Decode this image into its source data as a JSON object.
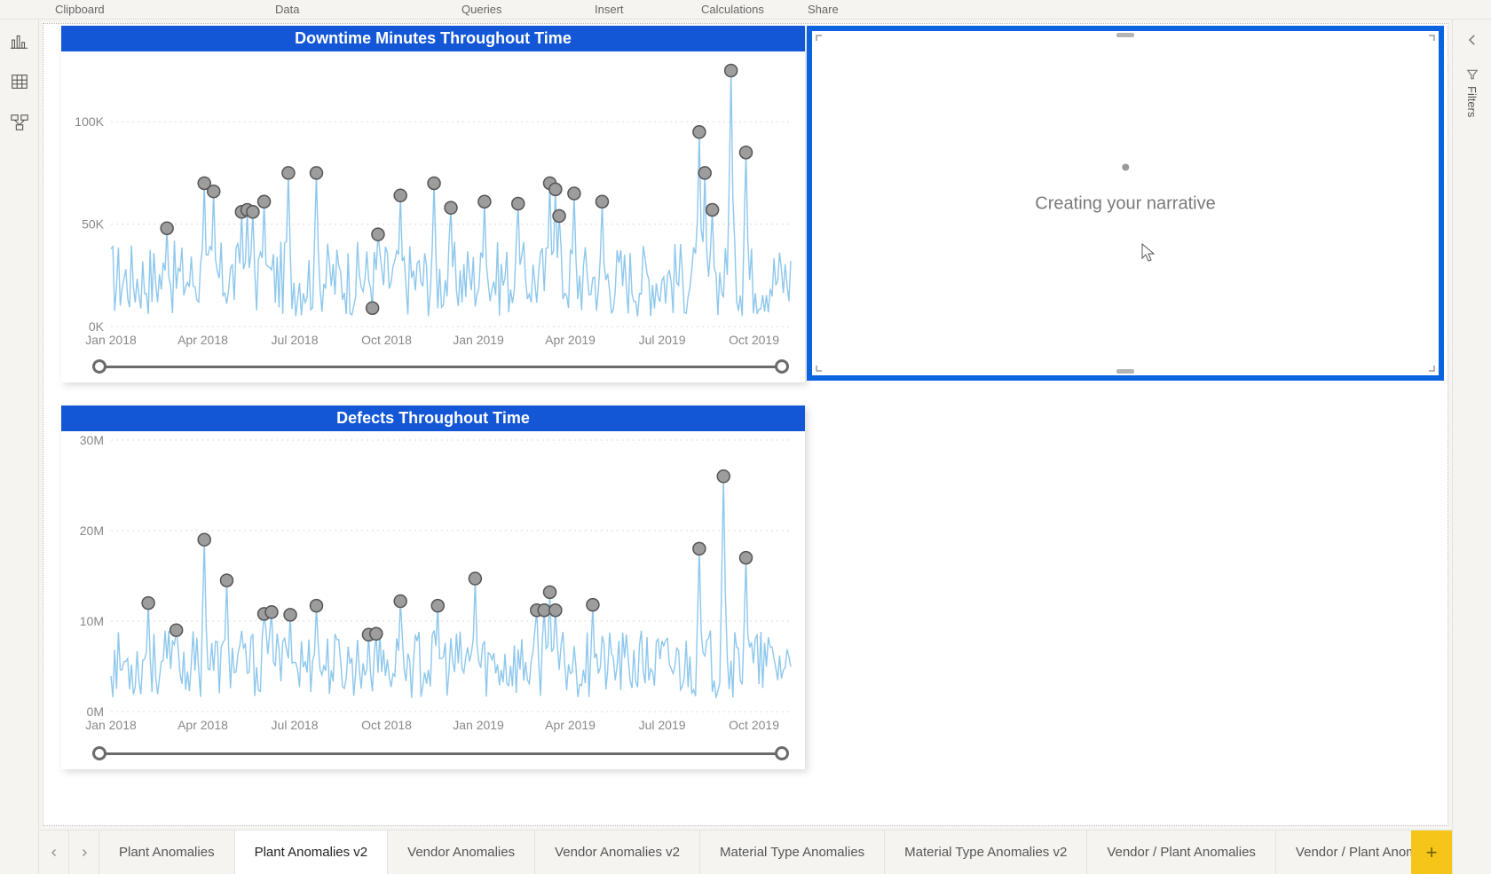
{
  "ribbon_groups": {
    "clipboard": "Clipboard",
    "data": "Data",
    "queries": "Queries",
    "insert": "Insert",
    "calculations": "Calculations",
    "share": "Share"
  },
  "right_pane": {
    "filters_label": "Filters"
  },
  "narrative": {
    "text": "Creating your narrative"
  },
  "chart1": {
    "title": "Downtime Minutes Throughout Time",
    "title_bg": "#1457d6",
    "title_color": "#ffffff",
    "line_color": "#8ec7ec",
    "marker_fill": "#9d9d9d",
    "marker_stroke": "#555555",
    "grid_color": "#dcdcdc",
    "axis_color": "#888888",
    "slider_color": "#6b6b6b",
    "n": 365,
    "y_ticks": [
      0,
      50000,
      100000
    ],
    "y_tick_labels": [
      "0K",
      "50K",
      "100K"
    ],
    "ymax": 130000,
    "x_axis_labels": [
      "Jan 2018",
      "Apr 2018",
      "Jul 2018",
      "Oct 2018",
      "Jan 2019",
      "Apr 2019",
      "Jul 2019",
      "Oct 2019"
    ],
    "base_min": 5000,
    "base_max": 42000,
    "markers": [
      {
        "i": 30,
        "v": 48000
      },
      {
        "i": 50,
        "v": 70000
      },
      {
        "i": 55,
        "v": 66000
      },
      {
        "i": 70,
        "v": 56000
      },
      {
        "i": 73,
        "v": 57000
      },
      {
        "i": 76,
        "v": 56000
      },
      {
        "i": 82,
        "v": 61000
      },
      {
        "i": 95,
        "v": 75000
      },
      {
        "i": 110,
        "v": 75000
      },
      {
        "i": 140,
        "v": 9000
      },
      {
        "i": 143,
        "v": 45000
      },
      {
        "i": 155,
        "v": 64000
      },
      {
        "i": 173,
        "v": 70000
      },
      {
        "i": 182,
        "v": 58000
      },
      {
        "i": 200,
        "v": 61000
      },
      {
        "i": 218,
        "v": 60000
      },
      {
        "i": 235,
        "v": 70000
      },
      {
        "i": 238,
        "v": 67000
      },
      {
        "i": 240,
        "v": 54000
      },
      {
        "i": 248,
        "v": 65000
      },
      {
        "i": 263,
        "v": 61000
      },
      {
        "i": 315,
        "v": 95000
      },
      {
        "i": 318,
        "v": 75000
      },
      {
        "i": 322,
        "v": 57000
      },
      {
        "i": 332,
        "v": 125000
      },
      {
        "i": 340,
        "v": 85000
      }
    ]
  },
  "chart2": {
    "title": "Defects Throughout Time",
    "title_bg": "#1457d6",
    "title_color": "#ffffff",
    "line_color": "#8ec7ec",
    "marker_fill": "#9d9d9d",
    "marker_stroke": "#555555",
    "grid_color": "#dcdcdc",
    "axis_color": "#888888",
    "slider_color": "#6b6b6b",
    "n": 365,
    "y_ticks": [
      0,
      10000000,
      20000000,
      30000000
    ],
    "y_tick_labels": [
      "0M",
      "10M",
      "20M",
      "30M"
    ],
    "ymax": 30000000,
    "x_axis_labels": [
      "Jan 2018",
      "Apr 2018",
      "Jul 2018",
      "Oct 2018",
      "Jan 2019",
      "Apr 2019",
      "Jul 2019",
      "Oct 2019"
    ],
    "base_min": 1500000,
    "base_max": 9000000,
    "markers": [
      {
        "i": 20,
        "v": 12000000
      },
      {
        "i": 35,
        "v": 9000000
      },
      {
        "i": 50,
        "v": 19000000
      },
      {
        "i": 62,
        "v": 14500000
      },
      {
        "i": 82,
        "v": 10800000
      },
      {
        "i": 86,
        "v": 11000000
      },
      {
        "i": 96,
        "v": 10700000
      },
      {
        "i": 110,
        "v": 11700000
      },
      {
        "i": 138,
        "v": 8500000
      },
      {
        "i": 142,
        "v": 8600000
      },
      {
        "i": 155,
        "v": 12200000
      },
      {
        "i": 175,
        "v": 11700000
      },
      {
        "i": 195,
        "v": 14700000
      },
      {
        "i": 228,
        "v": 11200000
      },
      {
        "i": 232,
        "v": 11200000
      },
      {
        "i": 235,
        "v": 13200000
      },
      {
        "i": 238,
        "v": 11200000
      },
      {
        "i": 258,
        "v": 11800000
      },
      {
        "i": 315,
        "v": 18000000
      },
      {
        "i": 328,
        "v": 26000000
      },
      {
        "i": 340,
        "v": 17000000
      }
    ]
  },
  "page_tabs": {
    "active_index": 1,
    "tabs": [
      "Plant Anomalies",
      "Plant Anomalies v2",
      "Vendor Anomalies",
      "Vendor Anomalies v2",
      "Material Type Anomalies",
      "Material Type Anomalies v2",
      "Vendor / Plant Anomalies",
      "Vendor / Plant Anomalies v2",
      "Vendor / Plant Ano"
    ]
  }
}
